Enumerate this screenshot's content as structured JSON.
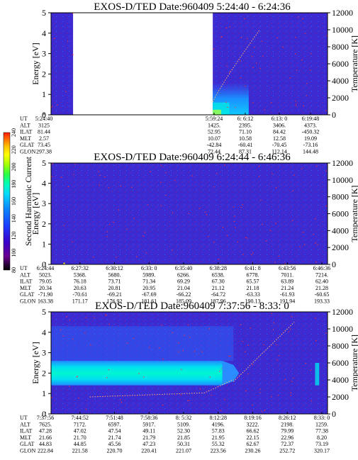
{
  "chart_data": [
    {
      "type": "heatmap",
      "title": "EXOS-D/TED   Date:960409   5:24:40 - 6:24:36",
      "ylabel": "Energy [eV]",
      "y2label": "Temperature [K]",
      "ylim": [
        0,
        5
      ],
      "y2lim": [
        0,
        12000
      ],
      "yticks": [
        "0",
        "1",
        "2",
        "3",
        "4",
        "5"
      ],
      "y2ticks": [
        "0",
        "2000",
        "4000",
        "6000",
        "8000",
        "10000",
        "12000"
      ],
      "data_gap": [
        "5:27:30",
        "5:59:24"
      ],
      "data_gap_fraction": [
        0.08,
        0.585
      ],
      "ephemeris_labels": [
        "UT",
        "ALT",
        "ILAT",
        "MLT",
        "GLAT",
        "GLON"
      ],
      "ephemeris": [
        [
          "5:24:40",
          "3125",
          "81.44",
          "2.57",
          "73.45",
          "297.38"
        ],
        [
          "5:59:24",
          "1425.",
          "52.95",
          "10.07",
          "-42.84",
          "72.44"
        ],
        [
          "6: 6:12",
          "2395.",
          "71.10",
          "10.58",
          "-60.41",
          "87.31"
        ],
        [
          "6:13: 0",
          "3406.",
          "84.42",
          "12.58",
          "-70.45",
          "112.14"
        ],
        [
          "6:19:48",
          "4373.",
          "-450.32",
          "19.09",
          "-73.16",
          "144.48"
        ]
      ],
      "features": "enhanced flux below ~1.5 eV after data gap; temperature trace rising 2000-10000 K"
    },
    {
      "type": "heatmap",
      "title": "EXOS-D/TED   Date:960409   6:24:44 - 6:46:36",
      "ylabel": "Energy [eV]",
      "y2label": "Temperature [K]",
      "ylim": [
        0,
        5
      ],
      "y2lim": [
        0,
        12000
      ],
      "yticks": [
        "0",
        "1",
        "2",
        "3",
        "4",
        "5"
      ],
      "y2ticks": [
        "0",
        "2000",
        "4000",
        "6000",
        "8000",
        "10000",
        "12000"
      ],
      "ephemeris_labels": [
        "UT",
        "ALT",
        "ILAT",
        "MLT",
        "GLAT",
        "GLON"
      ],
      "ephemeris": [
        [
          "6:24:44",
          "5023.",
          "79.05",
          "20.34",
          "-71.90",
          "163.38"
        ],
        [
          "6:27:32",
          "5368.",
          "76.18",
          "20.63",
          "-70.61",
          "171.17"
        ],
        [
          "6:30:12",
          "5680.",
          "73.71",
          "20.81",
          "-69.21",
          "176.92"
        ],
        [
          "6:33: 0",
          "5989.",
          "71.34",
          "20.95",
          "-67.69",
          "181.61"
        ],
        [
          "6:35:40",
          "6266.",
          "69.29",
          "21.04",
          "-66.22",
          "185.09"
        ],
        [
          "6:38:28",
          "6538.",
          "67.30",
          "21.12",
          "-64.72",
          "187.96"
        ],
        [
          "6:41: 8",
          "6778.",
          "65.57",
          "21.18",
          "-63.33",
          "190.13"
        ],
        [
          "6:43:56",
          "7011.",
          "63.89",
          "21.24",
          "-61.93",
          "191.94"
        ],
        [
          "6:46:36",
          "7214.",
          "62.40",
          "21.28",
          "-60.65",
          "193.33"
        ]
      ],
      "features": "uniform background level, no significant enhancement"
    },
    {
      "type": "heatmap",
      "title": "EXOS-D/TED   Date:960409   7:37:56 - 8:33: 0",
      "ylabel": "Energy [eV]",
      "y2label": "Temperature [K]",
      "ylim": [
        0,
        5
      ],
      "y2lim": [
        0,
        12000
      ],
      "yticks": [
        "0",
        "1",
        "2",
        "3",
        "4",
        "5"
      ],
      "y2ticks": [
        "0",
        "2000",
        "4000",
        "6000",
        "8000",
        "10000",
        "12000"
      ],
      "ephemeris_labels": [
        "UT",
        "ALT",
        "ILAT",
        "MLT",
        "GLAT",
        "GLON"
      ],
      "ephemeris": [
        [
          "7:37:56",
          "7625.",
          "47.28",
          "21.66",
          "44.83",
          "222.84"
        ],
        [
          "7:44:52",
          "7172.",
          "47.02",
          "21.70",
          "44.85",
          "221.58"
        ],
        [
          "7:51:48",
          "6597.",
          "47.54",
          "21.74",
          "45.56",
          "220.70"
        ],
        [
          "7:58:36",
          "5917.",
          "49.11",
          "21.79",
          "47.23",
          "220.41"
        ],
        [
          "8: 5:32",
          "5109.",
          "52.30",
          "21.85",
          "50.31",
          "221.07"
        ],
        [
          "8:12:28",
          "4196.",
          "57.83",
          "21.95",
          "55.32",
          "223.56"
        ],
        [
          "8:19:16",
          "3222.",
          "66.62",
          "22.15",
          "62.67",
          "230.26"
        ],
        [
          "8:26:12",
          "2198.",
          "79.99",
          "22.96",
          "72.37",
          "252.72"
        ],
        [
          "8:33: 0",
          "1259.",
          "77.38",
          "8.20",
          "73.19",
          "320.17"
        ]
      ],
      "features": "intense band between ~1.5 and 2.5 eV until ~8:12; temperature ~2000 K rising to >10000 K after 8:12"
    }
  ],
  "colorbar": {
    "label": "Second Harmonic Current",
    "min": 80,
    "max": 240,
    "ticks": [
      "80",
      "100",
      "120",
      "140",
      "160",
      "180",
      "200",
      "220",
      "240"
    ],
    "colors": [
      "#000000",
      "#6a0090",
      "#3a00c8",
      "#1a3cff",
      "#0a8aff",
      "#00d8ff",
      "#00ffb4",
      "#30ff40",
      "#a8ff00",
      "#ffff00",
      "#ffc000",
      "#ff7000",
      "#ff1a00"
    ]
  }
}
